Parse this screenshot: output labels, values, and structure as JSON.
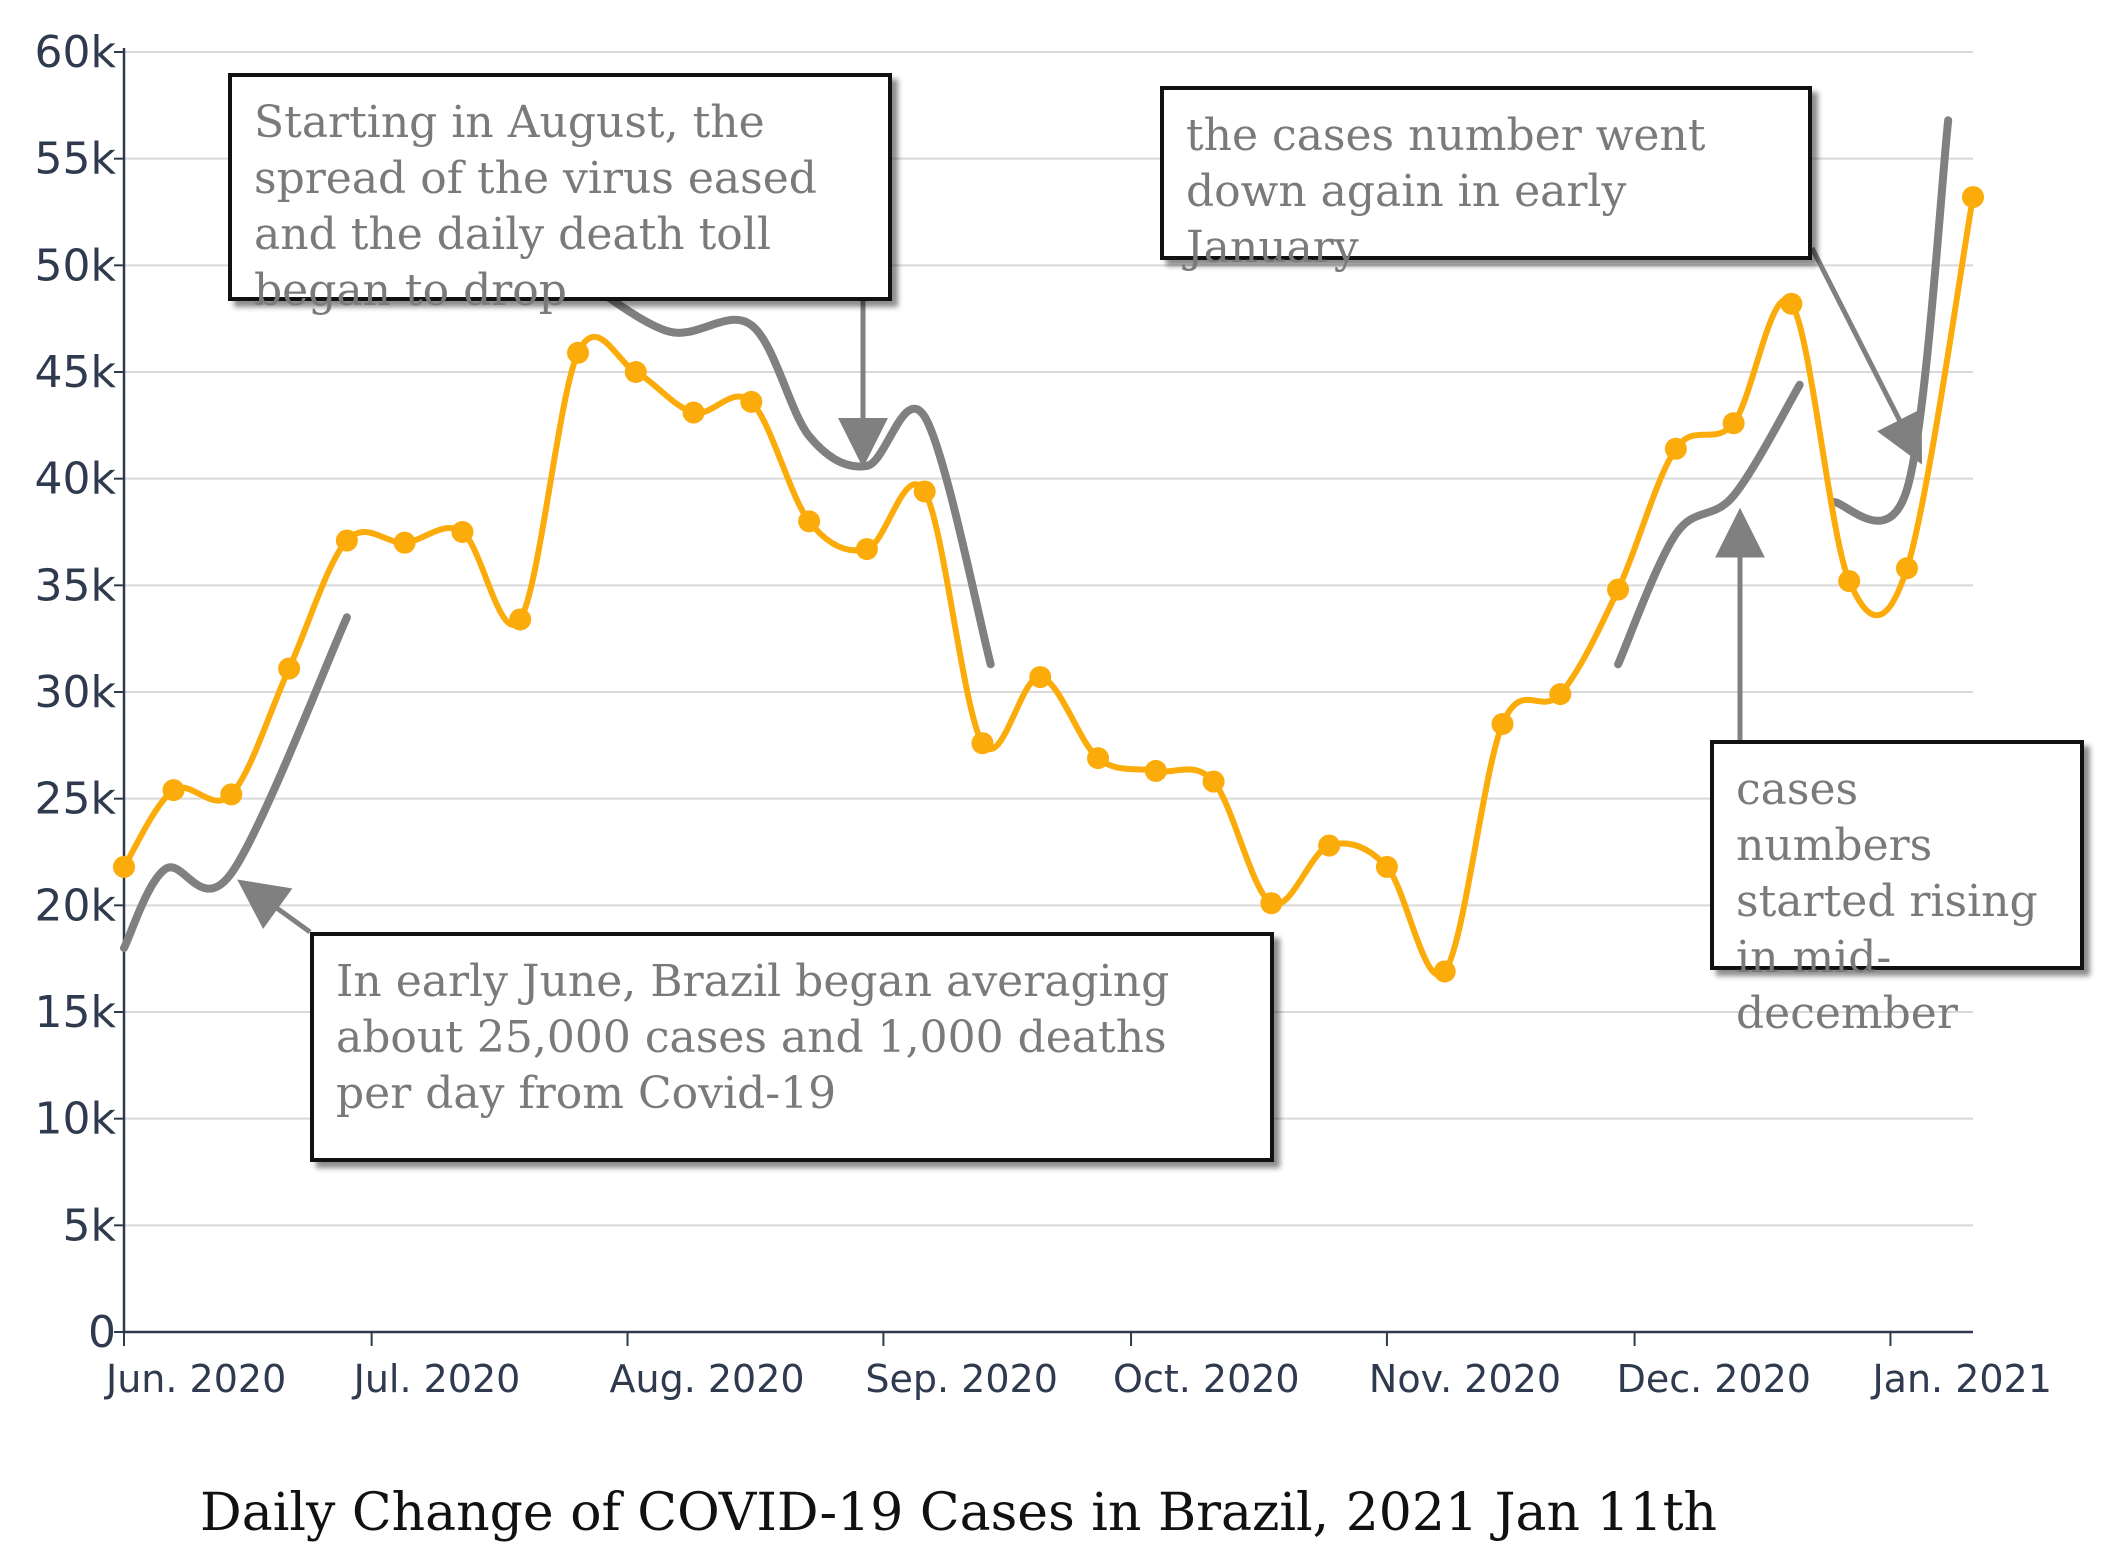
{
  "chart_data": {
    "type": "line",
    "title": "Daily Change of COVID-19 Cases in Brazil, 2021 Jan 11th",
    "xlabel": "",
    "ylabel": "",
    "ylim": [
      0,
      60000
    ],
    "yticks": [
      {
        "value": 0,
        "label": "0"
      },
      {
        "value": 5000,
        "label": "5k"
      },
      {
        "value": 10000,
        "label": "10k"
      },
      {
        "value": 15000,
        "label": "15k"
      },
      {
        "value": 20000,
        "label": "20k"
      },
      {
        "value": 25000,
        "label": "25k"
      },
      {
        "value": 30000,
        "label": "30k"
      },
      {
        "value": 35000,
        "label": "35k"
      },
      {
        "value": 40000,
        "label": "40k"
      },
      {
        "value": 45000,
        "label": "45k"
      },
      {
        "value": 50000,
        "label": "50k"
      },
      {
        "value": 55000,
        "label": "55k"
      },
      {
        "value": 60000,
        "label": "60k"
      }
    ],
    "xlim": [
      "2020-06-01",
      "2021-01-11"
    ],
    "xticks": [
      {
        "date": "2020-06-01",
        "label": "Jun. 2020"
      },
      {
        "date": "2020-07-01",
        "label": "Jul. 2020"
      },
      {
        "date": "2020-08-01",
        "label": "Aug. 2020"
      },
      {
        "date": "2020-09-01",
        "label": "Sep. 2020"
      },
      {
        "date": "2020-10-01",
        "label": "Oct. 2020"
      },
      {
        "date": "2020-11-01",
        "label": "Nov. 2020"
      },
      {
        "date": "2020-12-01",
        "label": "Dec. 2020"
      },
      {
        "date": "2021-01-01",
        "label": "Jan. 2021"
      }
    ],
    "grid": true,
    "colors": {
      "line": "#fbab0a",
      "annotation_curve": "#808080",
      "grid": "#d9d9d9",
      "axis": "#2f3a4f"
    },
    "series": [
      {
        "x": [
          "2020-06-01",
          "2020-06-07",
          "2020-06-14",
          "2020-06-21",
          "2020-06-28",
          "2020-07-05",
          "2020-07-12",
          "2020-07-19",
          "2020-07-26",
          "2020-08-02",
          "2020-08-09",
          "2020-08-16",
          "2020-08-23",
          "2020-08-30",
          "2020-09-06",
          "2020-09-13",
          "2020-09-20",
          "2020-09-27",
          "2020-10-04",
          "2020-10-11",
          "2020-10-18",
          "2020-10-25",
          "2020-11-01",
          "2020-11-08",
          "2020-11-15",
          "2020-11-22",
          "2020-11-29",
          "2020-12-06",
          "2020-12-13",
          "2020-12-20",
          "2020-12-27",
          "2021-01-03",
          "2021-01-11"
        ],
        "values": [
          21800,
          25400,
          25200,
          31100,
          37100,
          37000,
          37500,
          33400,
          45900,
          45000,
          43100,
          43600,
          38000,
          36700,
          39400,
          27600,
          30700,
          26900,
          26300,
          25800,
          20100,
          22800,
          21800,
          16900,
          28500,
          29900,
          34800,
          41400,
          42600,
          48200,
          35200,
          35800,
          53200
        ]
      }
    ],
    "annotations": [
      {
        "text": "In early June, Brazil began averaging about 25,000 cases and 1,000 deaths per day from Covid-19",
        "curve": [
          [
            "2020-06-01",
            18000
          ],
          [
            "2020-06-06",
            21700
          ],
          [
            "2020-06-14",
            21500
          ],
          [
            "2020-06-28",
            33500
          ]
        ]
      },
      {
        "text": "Starting in August, the spread of the virus eased and the daily death toll began to drop",
        "curve": [
          [
            "2020-07-26",
            49500
          ],
          [
            "2020-08-06",
            46900
          ],
          [
            "2020-08-16",
            47200
          ],
          [
            "2020-08-23",
            42000
          ],
          [
            "2020-08-30",
            40600
          ],
          [
            "2020-09-06",
            42900
          ],
          [
            "2020-09-14",
            31300
          ]
        ]
      },
      {
        "text": "cases numbers started rising in mid-december",
        "curve": [
          [
            "2020-11-29",
            31300
          ],
          [
            "2020-12-06",
            37400
          ],
          [
            "2020-12-13",
            39200
          ],
          [
            "2020-12-21",
            44400
          ]
        ]
      },
      {
        "text": "the cases number went down again in early January",
        "curve": [
          [
            "2020-12-25",
            38900
          ],
          [
            "2021-01-03",
            39500
          ],
          [
            "2021-01-08",
            56800
          ]
        ]
      }
    ]
  }
}
